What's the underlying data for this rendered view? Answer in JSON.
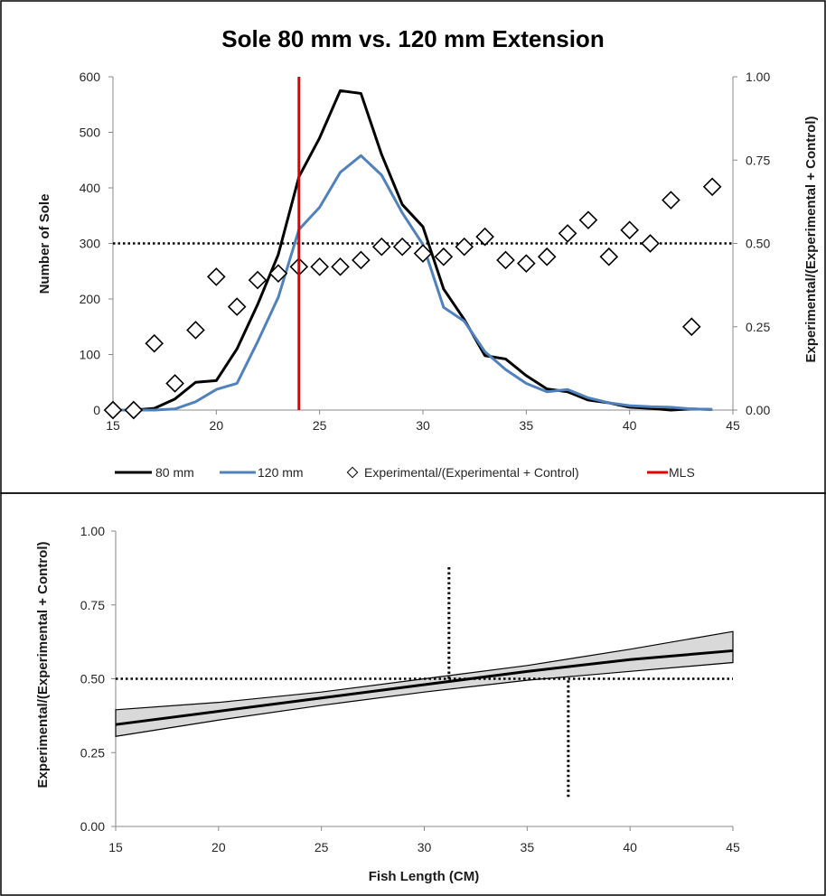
{
  "colors": {
    "series_80mm": "#000000",
    "series_120mm": "#4F81BD",
    "mls": "#E00000",
    "band_fill": "#D9D9D9",
    "reference": "#000000"
  },
  "chart_data": [
    {
      "type": "line",
      "title": "Sole 80 mm vs. 120 mm Extension",
      "xlabel": "",
      "ylabel": "Number of Sole",
      "y2label": "Experimental/(Experimental + Control)",
      "xlim": [
        15,
        45
      ],
      "ylim": [
        0,
        600
      ],
      "y2lim": [
        0,
        1
      ],
      "x_ticks": [
        "15",
        "20",
        "25",
        "30",
        "35",
        "40",
        "45"
      ],
      "y_ticks": [
        "0",
        "100",
        "200",
        "300",
        "400",
        "500",
        "600"
      ],
      "y2_ticks": [
        "0.00",
        "0.25",
        "0.50",
        "0.75",
        "1.00"
      ],
      "grid": false,
      "legend_position": "bottom",
      "legend": [
        "80 mm",
        "120 mm",
        "Experimental/(Experimental + Control)",
        "MLS"
      ],
      "series": [
        {
          "name": "80 mm",
          "axis": "left",
          "x": [
            15,
            16,
            17,
            18,
            19,
            20,
            21,
            22,
            23,
            24,
            25,
            26,
            27,
            28,
            29,
            30,
            31,
            32,
            33,
            34,
            35,
            36,
            37,
            38,
            39,
            40,
            41,
            42,
            43,
            44
          ],
          "values": [
            0,
            0,
            3,
            20,
            50,
            53,
            110,
            190,
            280,
            420,
            490,
            575,
            570,
            460,
            370,
            330,
            218,
            163,
            98,
            92,
            62,
            38,
            33,
            18,
            13,
            5,
            3,
            0,
            2,
            1
          ]
        },
        {
          "name": "120 mm",
          "axis": "left",
          "x": [
            15,
            16,
            17,
            18,
            19,
            20,
            21,
            22,
            23,
            24,
            25,
            26,
            27,
            28,
            29,
            30,
            31,
            32,
            33,
            34,
            35,
            36,
            37,
            38,
            39,
            40,
            41,
            42,
            43,
            44
          ],
          "values": [
            0,
            0,
            0,
            2,
            15,
            37,
            48,
            123,
            203,
            325,
            365,
            428,
            458,
            423,
            355,
            298,
            185,
            160,
            105,
            73,
            48,
            33,
            37,
            22,
            13,
            8,
            6,
            5,
            2,
            1
          ]
        },
        {
          "name": "Experimental/(Experimental + Control)",
          "axis": "right",
          "style": "markers",
          "x": [
            15,
            16,
            17,
            18,
            19,
            20,
            21,
            22,
            23,
            24,
            25,
            26,
            27,
            28,
            29,
            30,
            31,
            32,
            33,
            34,
            35,
            36,
            37,
            38,
            39,
            40,
            41,
            42,
            43,
            44
          ],
          "values": [
            0.0,
            0.0,
            0.2,
            0.08,
            0.24,
            0.4,
            0.31,
            0.39,
            0.41,
            0.43,
            0.43,
            0.43,
            0.45,
            0.49,
            0.49,
            0.47,
            0.46,
            0.49,
            0.52,
            0.45,
            0.44,
            0.46,
            0.53,
            0.57,
            0.46,
            0.54,
            0.5,
            0.63,
            0.25,
            0.67
          ]
        }
      ],
      "reference_lines": [
        {
          "name": "MLS",
          "orientation": "vertical",
          "x": 24
        },
        {
          "orientation": "horizontal",
          "axis": "right",
          "y": 0.5,
          "style": "dotted"
        }
      ]
    },
    {
      "type": "line",
      "title": "",
      "xlabel": "Fish Length (CM)",
      "ylabel": "Experimental/(Experimental + Control)",
      "xlim": [
        15,
        45
      ],
      "ylim": [
        0,
        1
      ],
      "x_ticks": [
        "15",
        "20",
        "25",
        "30",
        "35",
        "40",
        "45"
      ],
      "y_ticks": [
        "0.00",
        "0.25",
        "0.50",
        "0.75",
        "1.00"
      ],
      "grid": false,
      "x": [
        15,
        20,
        25,
        30,
        35,
        40,
        45
      ],
      "fit": [
        0.345,
        0.39,
        0.435,
        0.48,
        0.525,
        0.565,
        0.595
      ],
      "lower": [
        0.305,
        0.36,
        0.41,
        0.455,
        0.495,
        0.525,
        0.555
      ],
      "upper": [
        0.395,
        0.42,
        0.455,
        0.5,
        0.545,
        0.6,
        0.66
      ],
      "reference_lines": [
        {
          "orientation": "horizontal",
          "y": 0.5,
          "style": "dotted"
        },
        {
          "orientation": "vertical",
          "x": 31.2,
          "y_range": [
            0.5,
            0.88
          ],
          "style": "dotted"
        },
        {
          "orientation": "vertical",
          "x": 37,
          "y_range": [
            0.1,
            0.5
          ],
          "style": "dotted"
        }
      ]
    }
  ]
}
